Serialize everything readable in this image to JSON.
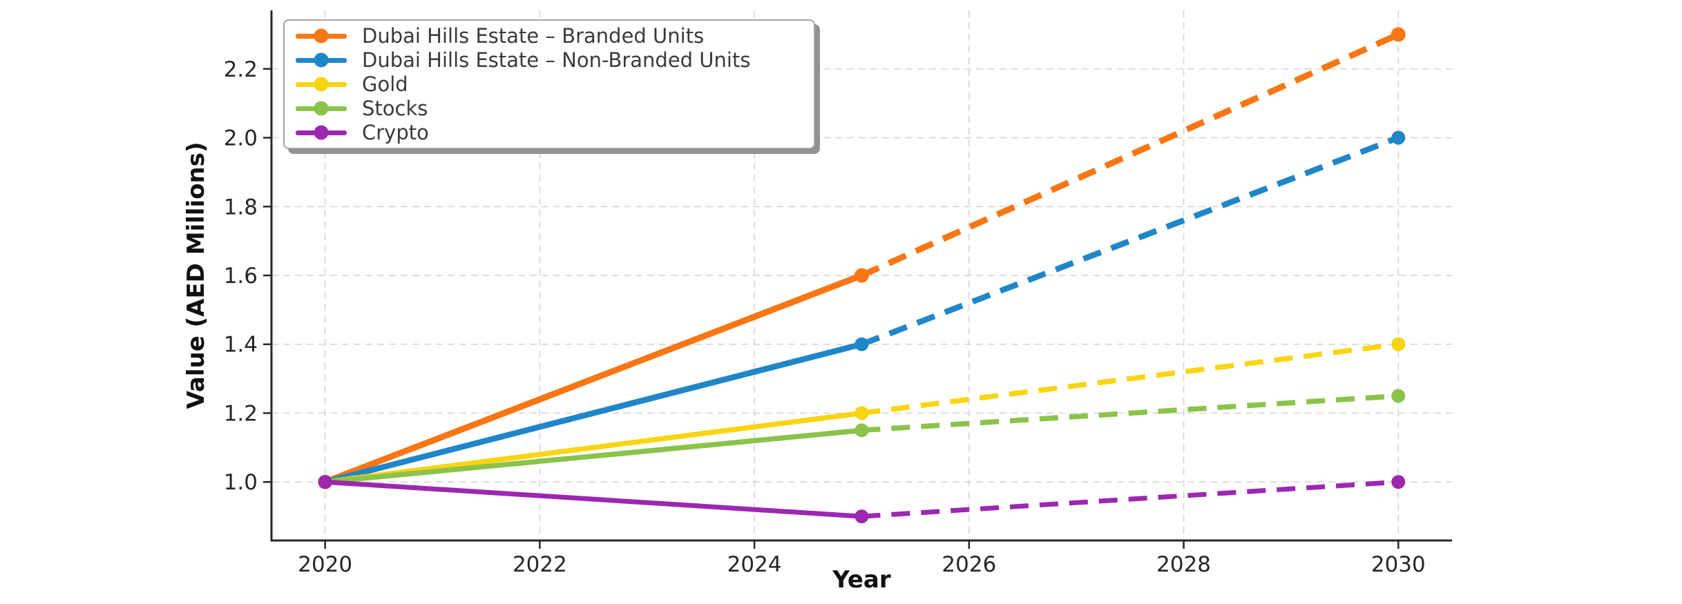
{
  "figure": {
    "background": "#ffffff"
  },
  "chart_data": {
    "type": "line",
    "title": "",
    "xlabel": "Year",
    "ylabel": "Value (AED Millions)",
    "x": [
      2020,
      2025,
      2030
    ],
    "dashed_after_x": 2025,
    "xtick_labels": [
      "2020",
      "2022",
      "2024",
      "2026",
      "2028",
      "2030"
    ],
    "xtick_values": [
      2020,
      2022,
      2024,
      2026,
      2028,
      2030
    ],
    "ytick_labels": [
      "1.0",
      "1.2",
      "1.4",
      "1.6",
      "1.8",
      "2.0",
      "2.2"
    ],
    "ytick_values": [
      1.0,
      1.2,
      1.4,
      1.6,
      1.8,
      2.0,
      2.2
    ],
    "xlim": [
      2019.5,
      2030.5
    ],
    "ylim": [
      0.83,
      2.37
    ],
    "grid": true,
    "legend_position": "upper-left",
    "series": [
      {
        "name": "Dubai Hills Estate – Branded Units",
        "color": "#F87613",
        "values": [
          1.0,
          1.6,
          2.3
        ],
        "linewidth": 9,
        "marker_radius": 10.5
      },
      {
        "name": "Dubai Hills Estate – Non-Branded Units",
        "color": "#1F86C9",
        "values": [
          1.0,
          1.4,
          2.0
        ],
        "linewidth": 8.5,
        "marker_radius": 10
      },
      {
        "name": "Gold",
        "color": "#F9D411",
        "values": [
          1.0,
          1.2,
          1.4
        ],
        "linewidth": 7.5,
        "marker_radius": 10
      },
      {
        "name": "Stocks",
        "color": "#8BC34A",
        "values": [
          1.0,
          1.15,
          1.25
        ],
        "linewidth": 7.5,
        "marker_radius": 10
      },
      {
        "name": "Crypto",
        "color": "#9C27B0",
        "values": [
          1.0,
          0.9,
          1.0
        ],
        "linewidth": 7,
        "marker_radius": 10
      }
    ],
    "styles": {
      "grid_color": "#D8D8D8",
      "spine_color": "#262626",
      "tick_color": "#262626",
      "tick_label_color": "#262626",
      "axis_label_color": "#111111",
      "legend_text_color": "#3a3a3a",
      "legend_border_color": "#a6a6a6",
      "legend_shadow_color": "#919191"
    }
  }
}
